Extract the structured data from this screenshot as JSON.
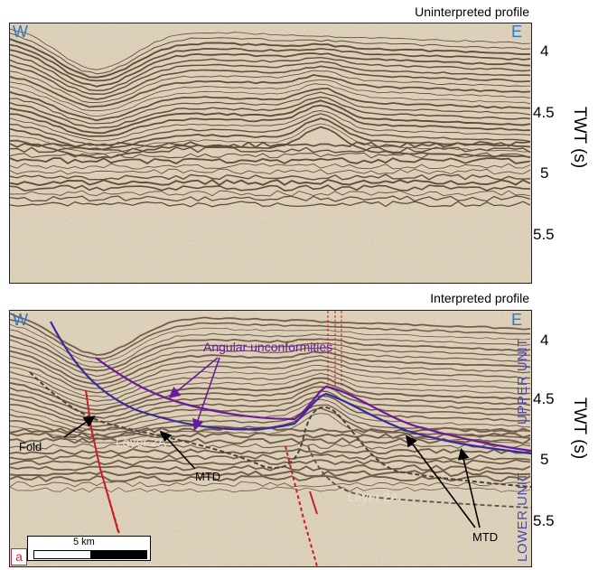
{
  "top_panel": {
    "title": "Uninterpreted profile",
    "west": "W",
    "east": "E"
  },
  "bottom_panel": {
    "title": "Interpreted profile",
    "west": "W",
    "east": "E",
    "annotations": {
      "angular": "Angular unconformities",
      "fold": "Fold",
      "layer2a_left": "Layer 2A",
      "layer2a_right": "Layer 2A",
      "mtd_left": "MTD",
      "mtd_right": "MTD",
      "upper_unit": "UPPER UNIT",
      "lower_unit": "LOWER UNIT"
    },
    "scalebar": "5 km",
    "panel_letter": "a"
  },
  "axis": {
    "label": "TWT (s)",
    "ticks_top": [
      "4",
      "4.5",
      "5",
      "5.5"
    ],
    "ticks_bottom": [
      "4",
      "4.5",
      "5",
      "5.5"
    ]
  },
  "colors": {
    "unconformity": "#6a1b9a",
    "lower_horizon": "#3a2a9a",
    "fault": "#c81e28",
    "dashed_horizon": "#444444",
    "direction": "#2f78c8"
  }
}
